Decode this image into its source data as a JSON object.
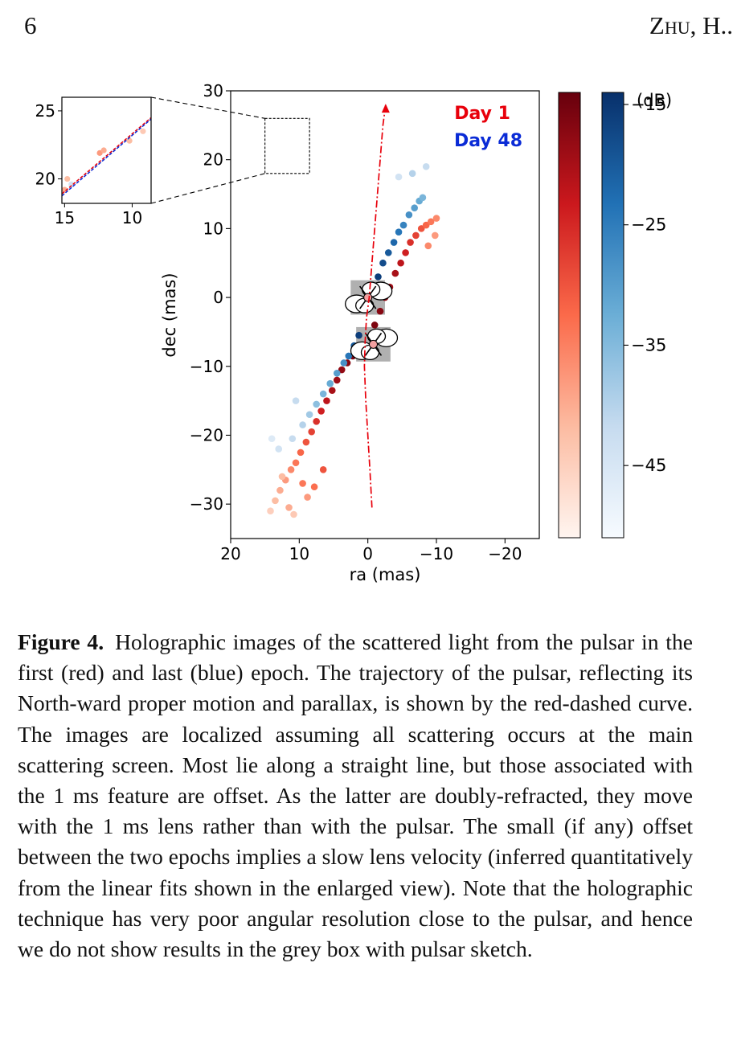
{
  "header": {
    "page_number": "6",
    "running_head": "Zhu, H.."
  },
  "chart_data": [
    {
      "type": "scatter",
      "title": "",
      "xlabel": "ra (mas)",
      "ylabel": "dec (mas)",
      "xlim": [
        20,
        -25
      ],
      "ylim": [
        -35,
        30
      ],
      "x_inverted": true,
      "xticks": [
        20,
        10,
        0,
        -10,
        -20
      ],
      "yticks": [
        30,
        20,
        10,
        0,
        -10,
        -20,
        -30
      ],
      "xtick_labels": [
        "20",
        "10",
        "0",
        "−10",
        "−20"
      ],
      "ytick_labels": [
        "30",
        "20",
        "10",
        "0",
        "−10",
        "−20",
        "−30"
      ],
      "legend": [
        {
          "label": "Day 1",
          "color": "#e8000b"
        },
        {
          "label": "Day 48",
          "color": "#0a2bd6"
        }
      ],
      "legend_placement": "top-right",
      "grid": false,
      "series": [
        {
          "name": "Day 1",
          "colormap": "Reds",
          "x": [
            14.2,
            13.5,
            12.8,
            12.0,
            11.2,
            10.5,
            9.8,
            9.0,
            8.2,
            7.5,
            6.8,
            6.0,
            5.2,
            4.5,
            3.8,
            3.0,
            2.2,
            1.5,
            0.8,
            -1.0,
            -1.8,
            -2.5,
            -3.2,
            -4.0,
            -4.8,
            -5.5,
            -6.2,
            -7.0,
            -7.8,
            -8.5,
            -9.2,
            -10.0,
            11.5,
            10.8,
            9.5,
            8.8,
            7.8,
            12.5,
            6.5,
            -8.8,
            -9.8
          ],
          "y": [
            -31.0,
            -29.5,
            -28.0,
            -26.5,
            -25.0,
            -24.0,
            -22.5,
            -21.0,
            -19.5,
            -18.0,
            -16.5,
            -15.0,
            -13.5,
            -12.0,
            -10.5,
            -9.5,
            -8.5,
            -8.0,
            -7.5,
            -4.0,
            -2.0,
            0.0,
            1.5,
            3.5,
            5.0,
            6.5,
            8.0,
            9.0,
            10.0,
            10.5,
            11.0,
            11.5,
            -30.5,
            -31.5,
            -27.0,
            -29.0,
            -27.5,
            -26.0,
            -25.0,
            7.5,
            9.0
          ],
          "dB": [
            -45,
            -42,
            -40,
            -38,
            -36,
            -34,
            -32,
            -30,
            -28,
            -26,
            -24,
            -22,
            -20,
            -19,
            -18,
            -17,
            -16,
            -15,
            -15,
            -16,
            -17,
            -18,
            -19,
            -20,
            -22,
            -24,
            -26,
            -28,
            -30,
            -32,
            -34,
            -36,
            -40,
            -44,
            -34,
            -38,
            -33,
            -42,
            -30,
            -36,
            -38
          ]
        },
        {
          "name": "Day 48",
          "colormap": "Blues",
          "x": [
            13.0,
            11.0,
            9.5,
            8.5,
            7.5,
            6.5,
            5.5,
            4.5,
            3.5,
            2.8,
            2.0,
            1.3,
            -1.5,
            -2.2,
            -3.0,
            -3.8,
            -4.5,
            -5.2,
            -6.0,
            -6.8,
            -7.5,
            -8.0,
            14.0,
            10.5,
            -4.5,
            -6.5,
            -8.5
          ],
          "y": [
            -22.0,
            -20.5,
            -18.5,
            -17.0,
            -15.5,
            -14.0,
            -12.5,
            -11.0,
            -9.5,
            -8.5,
            -7.0,
            -5.5,
            3.0,
            5.0,
            6.5,
            8.0,
            9.5,
            10.5,
            12.0,
            13.0,
            14.0,
            14.5,
            -20.5,
            -15.0,
            17.5,
            18.0,
            19.0
          ],
          "dB": [
            -44,
            -42,
            -40,
            -38,
            -36,
            -34,
            -32,
            -30,
            -28,
            -24,
            -20,
            -16,
            -16,
            -18,
            -20,
            -22,
            -24,
            -26,
            -28,
            -30,
            -32,
            -34,
            -46,
            -42,
            -44,
            -40,
            -42
          ]
        }
      ],
      "trajectory": {
        "name": "pulsar trajectory",
        "style": "red dash-dot",
        "x": [
          -0.6,
          -0.3,
          0.0,
          0.3,
          0.5,
          0.4,
          0.2,
          -0.2,
          -0.6,
          -1.0,
          -1.4,
          -1.8,
          -2.2,
          -2.6
        ],
        "y": [
          -30.5,
          -25.0,
          -20.0,
          -15.0,
          -10.0,
          -6.5,
          -3.0,
          0.0,
          5.0,
          10.0,
          15.0,
          20.0,
          25.0,
          28.0
        ]
      },
      "pulsar_boxes": [
        {
          "center": [
            0.0,
            0.0
          ],
          "half_width": [
            2.5,
            2.5
          ]
        },
        {
          "center": [
            -0.8,
            -6.8
          ],
          "half_width": [
            2.5,
            2.5
          ]
        }
      ],
      "zoom_box": {
        "x": [
          15.0,
          8.5
        ],
        "y": [
          18.0,
          26.0
        ]
      }
    },
    {
      "type": "scatter",
      "title": "",
      "xlim": [
        15.2,
        8.6
      ],
      "ylim": [
        18.2,
        26.0
      ],
      "xticks": [
        15,
        10
      ],
      "yticks": [
        25,
        20
      ],
      "xtick_labels": [
        "15",
        "10"
      ],
      "ytick_labels": [
        "25",
        "20"
      ],
      "fit_lines": [
        {
          "name": "Day 1 fit",
          "color": "#e8000b",
          "x": [
            15.2,
            8.6
          ],
          "y": [
            18.9,
            24.5
          ]
        },
        {
          "name": "Day 48 fit",
          "color": "#0a2bd6",
          "x": [
            15.2,
            8.6
          ],
          "y": [
            18.75,
            24.4
          ]
        }
      ],
      "points": {
        "x": [
          15.0,
          14.8,
          12.4,
          12.1,
          10.2,
          9.2,
          14.5
        ],
        "y": [
          19.2,
          20.0,
          21.9,
          22.1,
          22.8,
          23.5,
          19.6
        ],
        "dB": [
          -40,
          -42,
          -38,
          -40,
          -42,
          -44,
          -44
        ],
        "colormap": [
          "Reds",
          "Reds",
          "Reds",
          "Reds",
          "Reds",
          "Reds",
          "Blues"
        ]
      }
    }
  ],
  "colorbars": [
    {
      "name": "Day 1",
      "colormap": "Reds",
      "range_dB": [
        -51,
        -14
      ]
    },
    {
      "name": "Day 48",
      "colormap": "Blues",
      "range_dB": [
        -51,
        -14
      ],
      "unit_label": "(dB)",
      "ticks": [
        -15,
        -25,
        -35,
        -45
      ],
      "tick_labels": [
        "−15",
        "−25",
        "−35",
        "−45"
      ]
    }
  ],
  "caption": {
    "label": "Figure 4.",
    "text": "Holographic images of the scattered light from the pulsar in the first (red) and last (blue) epoch. The trajectory of the pulsar, reflecting its North-ward proper motion and parallax, is shown by the red-dashed curve. The images are localized assuming all scattering occurs at the main scattering screen. Most lie along a straight line, but those associated with the 1 ms feature are offset. As the latter are doubly-refracted, they move with the 1 ms lens rather than with the pulsar. The small (if any) offset between the two epochs implies a slow lens velocity (inferred quantitatively from the linear fits shown in the enlarged view). Note that the holographic technique has very poor angular resolution close to the pulsar, and hence we do not show results in the grey box with pulsar sketch."
  }
}
